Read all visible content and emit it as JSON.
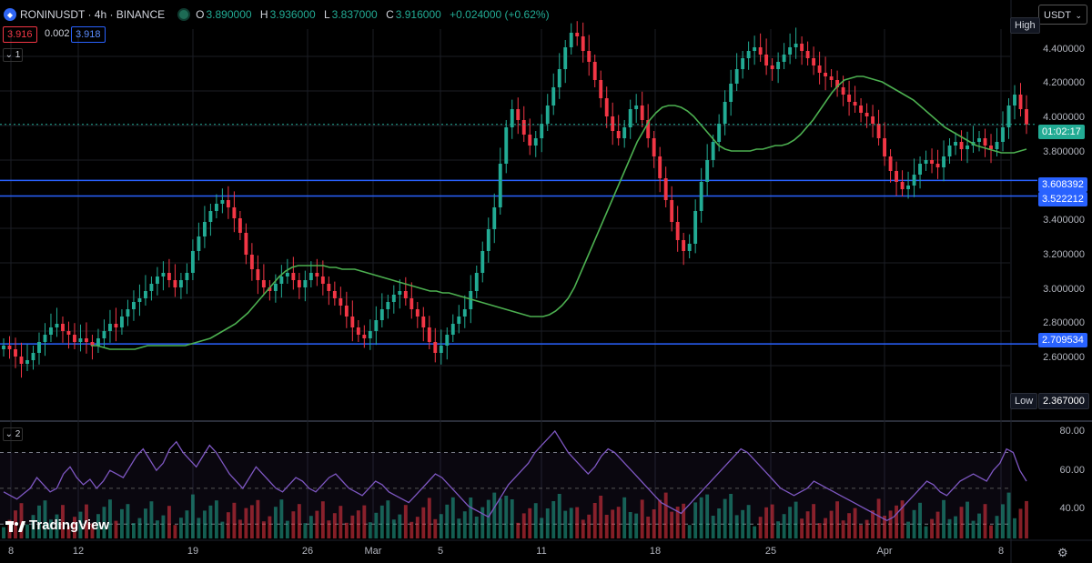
{
  "header": {
    "symbol": "RONINUSDT · 4h · BINANCE",
    "o_label": "O",
    "o_value": "3.890000",
    "h_label": "H",
    "h_value": "3.936000",
    "l_label": "L",
    "l_value": "3.837000",
    "c_label": "C",
    "c_value": "3.916000",
    "change": "+0.024000 (+0.62%)"
  },
  "quote": {
    "bid": "3.916",
    "spread": "0.002",
    "ask": "3.918"
  },
  "panes": {
    "main_collapse": "1",
    "rsi_collapse": "2"
  },
  "currency_button": "USDT",
  "price_axis": [
    "4.400000",
    "4.200000",
    "4.000000",
    "3.800000",
    "3.400000",
    "3.200000",
    "3.000000",
    "2.800000",
    "2.600000"
  ],
  "rsi_axis": [
    "80.00",
    "60.00",
    "40.00"
  ],
  "levels": [
    "3.608392",
    "3.522212",
    "2.709534"
  ],
  "countdown": "01:02:17",
  "high_label": "High",
  "low_label": "Low",
  "low_value": "2.367000",
  "dates": [
    "8",
    "12",
    "19",
    "26",
    "Mar",
    "5",
    "11",
    "18",
    "25",
    "Apr",
    "8"
  ],
  "brand": "TradingView",
  "colors": {
    "up": "#22ab94",
    "down": "#f23645",
    "ma": "#4caf50",
    "level": "#2962ff",
    "rsi": "#7e57c2",
    "grid": "#1b1e25"
  },
  "chart_data": {
    "type": "candlestick",
    "price_ylim": [
      2.36,
      4.5
    ],
    "close": [
      2.7,
      2.68,
      2.64,
      2.6,
      2.62,
      2.66,
      2.72,
      2.76,
      2.8,
      2.82,
      2.78,
      2.76,
      2.72,
      2.74,
      2.72,
      2.7,
      2.74,
      2.78,
      2.82,
      2.8,
      2.86,
      2.9,
      2.94,
      2.96,
      3.0,
      3.04,
      3.08,
      3.1,
      3.06,
      3.02,
      3.06,
      3.1,
      3.22,
      3.3,
      3.38,
      3.44,
      3.48,
      3.5,
      3.46,
      3.4,
      3.32,
      3.2,
      3.12,
      3.06,
      3.02,
      3.0,
      3.04,
      3.08,
      3.1,
      3.06,
      3.02,
      3.06,
      3.1,
      3.08,
      3.04,
      3.0,
      2.96,
      2.92,
      2.86,
      2.8,
      2.76,
      2.74,
      2.78,
      2.84,
      2.9,
      2.94,
      2.98,
      3.0,
      2.96,
      2.9,
      2.86,
      2.8,
      2.72,
      2.66,
      2.7,
      2.76,
      2.82,
      2.86,
      2.9,
      3.0,
      3.1,
      3.22,
      3.34,
      3.46,
      3.7,
      3.9,
      4.0,
      3.94,
      3.86,
      3.8,
      3.84,
      3.92,
      4.02,
      4.12,
      4.22,
      4.34,
      4.42,
      4.4,
      4.32,
      4.26,
      4.16,
      4.06,
      3.96,
      3.88,
      3.84,
      3.9,
      4.0,
      4.02,
      3.94,
      3.84,
      3.74,
      3.62,
      3.5,
      3.38,
      3.28,
      3.22,
      3.26,
      3.44,
      3.6,
      3.72,
      3.82,
      3.92,
      4.04,
      4.14,
      4.22,
      4.28,
      4.32,
      4.34,
      4.3,
      4.24,
      4.22,
      4.26,
      4.3,
      4.34,
      4.36,
      4.32,
      4.28,
      4.24,
      4.2,
      4.18,
      4.16,
      4.12,
      4.08,
      4.04,
      4.02,
      3.98,
      3.96,
      3.92,
      3.84,
      3.74,
      3.66,
      3.6,
      3.56,
      3.58,
      3.64,
      3.7,
      3.72,
      3.7,
      3.68,
      3.74,
      3.8,
      3.82,
      3.78,
      3.8,
      3.82,
      3.84,
      3.8,
      3.78,
      3.82,
      3.9,
      4.02,
      4.08,
      4.0,
      3.916
    ],
    "ma": [
      2.7,
      2.7,
      2.69,
      2.68,
      2.68,
      2.68,
      2.68,
      2.68,
      2.69,
      2.7,
      2.7,
      2.7,
      2.7,
      2.7,
      2.7,
      2.7,
      2.71,
      2.72,
      2.73,
      2.74,
      2.76,
      2.78,
      2.8,
      2.82,
      2.85,
      2.88,
      2.92,
      2.96,
      3.0,
      3.04,
      3.08,
      3.11,
      3.13,
      3.14,
      3.14,
      3.14,
      3.14,
      3.14,
      3.13,
      3.13,
      3.12,
      3.12,
      3.12,
      3.11,
      3.1,
      3.09,
      3.08,
      3.07,
      3.06,
      3.05,
      3.04,
      3.03,
      3.02,
      3.01,
      3.0,
      3.0,
      2.99,
      2.99,
      2.98,
      2.97,
      2.96,
      2.95,
      2.94,
      2.93,
      2.92,
      2.91,
      2.9,
      2.89,
      2.88,
      2.87,
      2.86,
      2.86,
      2.86,
      2.87,
      2.89,
      2.92,
      2.96,
      3.02,
      3.1,
      3.18,
      3.26,
      3.34,
      3.42,
      3.5,
      3.58,
      3.66,
      3.74,
      3.82,
      3.88,
      3.94,
      3.98,
      4.01,
      4.02,
      4.02,
      4.01,
      3.99,
      3.96,
      3.92,
      3.88,
      3.84,
      3.8,
      3.78,
      3.77,
      3.77,
      3.77,
      3.77,
      3.78,
      3.78,
      3.79,
      3.8,
      3.8,
      3.81,
      3.83,
      3.86,
      3.9,
      3.94,
      3.99,
      4.04,
      4.09,
      4.13,
      4.16,
      4.17,
      4.18,
      4.18,
      4.17,
      4.16,
      4.15,
      4.13,
      4.11,
      4.09,
      4.07,
      4.05,
      4.02,
      3.99,
      3.96,
      3.93,
      3.9,
      3.88,
      3.86,
      3.84,
      3.82,
      3.8,
      3.79,
      3.78,
      3.77,
      3.76,
      3.76,
      3.76,
      3.77,
      3.78
    ],
    "rsi_ylim": [
      22,
      86
    ],
    "rsi": [
      48,
      46,
      44,
      47,
      50,
      56,
      52,
      48,
      50,
      58,
      62,
      56,
      52,
      55,
      50,
      54,
      60,
      58,
      56,
      62,
      68,
      72,
      66,
      60,
      64,
      72,
      76,
      70,
      66,
      62,
      68,
      74,
      70,
      64,
      58,
      54,
      50,
      56,
      62,
      58,
      54,
      50,
      48,
      52,
      56,
      54,
      50,
      48,
      52,
      56,
      58,
      54,
      50,
      48,
      46,
      50,
      54,
      52,
      48,
      46,
      44,
      42,
      46,
      50,
      54,
      58,
      56,
      52,
      48,
      44,
      40,
      38,
      36,
      34,
      40,
      46,
      52,
      56,
      60,
      64,
      70,
      74,
      78,
      82,
      76,
      70,
      66,
      62,
      58,
      62,
      68,
      72,
      70,
      66,
      62,
      58,
      54,
      50,
      46,
      42,
      40,
      38,
      36,
      40,
      44,
      48,
      52,
      56,
      60,
      64,
      68,
      72,
      70,
      66,
      62,
      58,
      54,
      50,
      48,
      46,
      48,
      50,
      54,
      52,
      50,
      48,
      46,
      44,
      42,
      40,
      38,
      36,
      34,
      32,
      34,
      38,
      42,
      46,
      50,
      54,
      52,
      48,
      46,
      50,
      54,
      56,
      58,
      56,
      54,
      60,
      64,
      72,
      70,
      60,
      54
    ]
  }
}
